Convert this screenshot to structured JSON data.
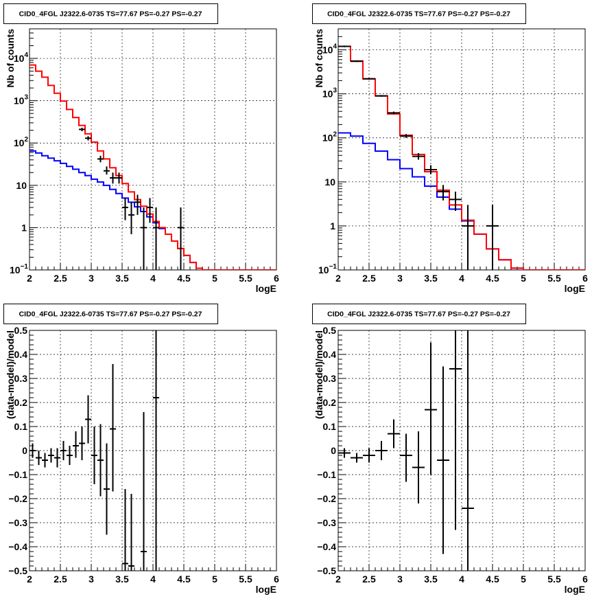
{
  "colors": {
    "model_total": "#ff0000",
    "model_background": "#0000ff",
    "data": "#000000"
  },
  "chart_data": [
    {
      "type": "line",
      "title": "CID0_4FGL J2322.6-0735 TS=77.67 PS=-0.27 PS=-0.27",
      "xlabel": "logE",
      "ylabel": "Nb of counts",
      "log_y": true,
      "grid": true,
      "xlim": [
        2,
        6
      ],
      "ylim": [
        0.1,
        50000
      ],
      "x_ticks": [
        "2",
        "2.5",
        "3",
        "3.5",
        "4",
        "4.5",
        "5",
        "5.5",
        "6"
      ],
      "y_ticks": [
        {
          "label": "10",
          "sup": "−1",
          "value": 0.1
        },
        {
          "label": "1",
          "sup": "",
          "value": 1
        },
        {
          "label": "10",
          "sup": "",
          "value": 10
        },
        {
          "label": "10",
          "sup": "2",
          "value": 100
        },
        {
          "label": "10",
          "sup": "3",
          "value": 1000
        },
        {
          "label": "10",
          "sup": "4",
          "value": 10000
        }
      ],
      "bin_edges": [
        2.0,
        2.1,
        2.2,
        2.3,
        2.4,
        2.5,
        2.6,
        2.7,
        2.8,
        2.9,
        3.0,
        3.1,
        3.2,
        3.3,
        3.4,
        3.5,
        3.6,
        3.7,
        3.8,
        3.9,
        4.0,
        4.1,
        4.2,
        4.3,
        4.4,
        4.5,
        4.6,
        4.7,
        4.8,
        4.9,
        5.0,
        5.1,
        5.2,
        5.3,
        5.4,
        5.5,
        5.6,
        5.7,
        5.8,
        5.9,
        6.0
      ],
      "series": [
        {
          "role": "model_total",
          "values": [
            7000,
            5000,
            3600,
            2300,
            1500,
            980,
            620,
            400,
            260,
            165,
            105,
            65,
            42,
            26,
            17,
            11,
            7,
            4.6,
            3.2,
            2.1,
            1.4,
            1.0,
            0.7,
            0.48,
            0.32,
            0.22,
            0.15,
            0.11,
            0.1,
            0.1,
            0.1,
            0.1,
            0.1,
            0.1,
            0.1,
            0.1,
            0.1,
            0.1,
            0.1,
            0.1
          ]
        },
        {
          "role": "model_background",
          "values": [
            65,
            58,
            50,
            44,
            38,
            33,
            28,
            24,
            20,
            17,
            14,
            12,
            10,
            8,
            6.4,
            5,
            4,
            3.1,
            2.4,
            1.8,
            1.3,
            0.95,
            0.7,
            0.48,
            0.32,
            0.22,
            0.15,
            0.11,
            0.1,
            0.1,
            0.1,
            0.1,
            0.1,
            0.1,
            0.1,
            0.1,
            0.1,
            0.1,
            0.1,
            0.1
          ]
        },
        {
          "role": "data",
          "points": [
            {
              "x": 2.85,
              "y": 210,
              "lo": 190,
              "hi": 230
            },
            {
              "x": 2.95,
              "y": 130,
              "lo": 115,
              "hi": 145
            },
            {
              "x": 3.15,
              "y": 42,
              "lo": 35,
              "hi": 50
            },
            {
              "x": 3.25,
              "y": 22,
              "lo": 18,
              "hi": 28
            },
            {
              "x": 3.35,
              "y": 15,
              "lo": 11,
              "hi": 20
            },
            {
              "x": 3.45,
              "y": 15,
              "lo": 11,
              "hi": 20
            },
            {
              "x": 3.55,
              "y": 3,
              "lo": 1.5,
              "hi": 5
            },
            {
              "x": 3.65,
              "y": 2,
              "lo": 0.7,
              "hi": 4
            },
            {
              "x": 3.75,
              "y": 4,
              "lo": 2,
              "hi": 6
            },
            {
              "x": 3.85,
              "y": 1,
              "lo": 0.1,
              "hi": 3
            },
            {
              "x": 3.95,
              "y": 3,
              "lo": 1.3,
              "hi": 5
            },
            {
              "x": 4.05,
              "y": 1,
              "lo": 0.1,
              "hi": 3
            },
            {
              "x": 4.45,
              "y": 1,
              "lo": 0.1,
              "hi": 3
            }
          ]
        }
      ]
    },
    {
      "type": "line",
      "title": "CID0_4FGL J2322.6-0735 TS=77.67 PS=-0.27 PS=-0.27",
      "xlabel": "logE",
      "ylabel": "Nb of counts",
      "log_y": true,
      "grid": true,
      "xlim": [
        2,
        6
      ],
      "ylim": [
        0.1,
        30000
      ],
      "x_ticks": [
        "2",
        "2.5",
        "3",
        "3.5",
        "4",
        "4.5",
        "5",
        "5.5",
        "6"
      ],
      "y_ticks": [
        {
          "label": "10",
          "sup": "−1",
          "value": 0.1
        },
        {
          "label": "1",
          "sup": "",
          "value": 1
        },
        {
          "label": "10",
          "sup": "",
          "value": 10
        },
        {
          "label": "10",
          "sup": "2",
          "value": 100
        },
        {
          "label": "10",
          "sup": "3",
          "value": 1000
        },
        {
          "label": "10",
          "sup": "4",
          "value": 10000
        }
      ],
      "bin_edges": [
        2.0,
        2.2,
        2.4,
        2.6,
        2.8,
        3.0,
        3.2,
        3.4,
        3.6,
        3.8,
        4.0,
        4.2,
        4.4,
        4.6,
        4.8,
        5.0,
        5.2,
        5.4,
        5.6,
        5.8,
        6.0
      ],
      "series": [
        {
          "role": "model_total",
          "values": [
            12000,
            5600,
            2200,
            900,
            350,
            115,
            42,
            17,
            6.5,
            3,
            1.35,
            0.65,
            0.3,
            0.17,
            0.11,
            0.1,
            0.1,
            0.1,
            0.1,
            0.1
          ]
        },
        {
          "role": "model_background",
          "values": [
            130,
            110,
            75,
            50,
            32,
            20,
            13,
            8,
            4.5,
            2.4,
            1.3,
            0.65,
            0.3,
            0.17,
            0.11,
            0.1,
            0.1,
            0.1,
            0.1,
            0.1
          ]
        },
        {
          "role": "data",
          "points": [
            {
              "x": 2.1,
              "y": 12000,
              "lo": 11500,
              "hi": 12500
            },
            {
              "x": 2.3,
              "y": 5500,
              "lo": 5300,
              "hi": 5700
            },
            {
              "x": 2.5,
              "y": 2200,
              "lo": 2100,
              "hi": 2300
            },
            {
              "x": 2.7,
              "y": 900,
              "lo": 860,
              "hi": 940
            },
            {
              "x": 2.9,
              "y": 370,
              "lo": 345,
              "hi": 395
            },
            {
              "x": 3.1,
              "y": 110,
              "lo": 100,
              "hi": 122
            },
            {
              "x": 3.3,
              "y": 38,
              "lo": 32,
              "hi": 45
            },
            {
              "x": 3.5,
              "y": 19,
              "lo": 15,
              "hi": 24
            },
            {
              "x": 3.7,
              "y": 6,
              "lo": 3.8,
              "hi": 8.5
            },
            {
              "x": 3.9,
              "y": 4,
              "lo": 2.2,
              "hi": 6
            },
            {
              "x": 4.1,
              "y": 1,
              "lo": 0.1,
              "hi": 3
            },
            {
              "x": 4.5,
              "y": 1,
              "lo": 0.1,
              "hi": 3
            }
          ]
        }
      ]
    },
    {
      "type": "scatter",
      "title": "CID0_4FGL J2322.6-0735 TS=77.67 PS=-0.27 PS=-0.27",
      "xlabel": "logE",
      "ylabel": "(data-model)/model",
      "grid": true,
      "xlim": [
        2,
        6
      ],
      "ylim": [
        -0.5,
        0.5
      ],
      "x_ticks": [
        "2",
        "2.5",
        "3",
        "3.5",
        "4",
        "4.5",
        "5",
        "5.5",
        "6"
      ],
      "y_ticks": [
        "−0.5",
        "−0.4",
        "−0.3",
        "−0.2",
        "−0.1",
        "0",
        "0.1",
        "0.2",
        "0.3",
        "0.4",
        "0.5"
      ],
      "points": [
        {
          "x": 2.05,
          "y": 0.0,
          "lo": -0.03,
          "hi": 0.03
        },
        {
          "x": 2.15,
          "y": -0.03,
          "lo": -0.06,
          "hi": 0.0
        },
        {
          "x": 2.25,
          "y": -0.04,
          "lo": -0.07,
          "hi": -0.01
        },
        {
          "x": 2.35,
          "y": -0.02,
          "lo": -0.05,
          "hi": 0.01
        },
        {
          "x": 2.45,
          "y": -0.03,
          "lo": -0.07,
          "hi": 0.01
        },
        {
          "x": 2.55,
          "y": 0.0,
          "lo": -0.04,
          "hi": 0.04
        },
        {
          "x": 2.65,
          "y": -0.02,
          "lo": -0.06,
          "hi": 0.02
        },
        {
          "x": 2.75,
          "y": 0.02,
          "lo": -0.03,
          "hi": 0.08
        },
        {
          "x": 2.85,
          "y": 0.03,
          "lo": -0.04,
          "hi": 0.1
        },
        {
          "x": 2.95,
          "y": 0.13,
          "lo": 0.03,
          "hi": 0.23
        },
        {
          "x": 3.05,
          "y": -0.02,
          "lo": -0.14,
          "hi": 0.1
        },
        {
          "x": 3.15,
          "y": -0.04,
          "lo": -0.19,
          "hi": 0.11
        },
        {
          "x": 3.25,
          "y": -0.16,
          "lo": -0.35,
          "hi": 0.03
        },
        {
          "x": 3.35,
          "y": 0.09,
          "lo": -0.17,
          "hi": 0.36
        },
        {
          "x": 3.55,
          "y": -0.47,
          "lo": -0.6,
          "hi": -0.16
        },
        {
          "x": 3.65,
          "y": -0.48,
          "lo": -0.6,
          "hi": -0.18
        },
        {
          "x": 3.85,
          "y": -0.42,
          "lo": -0.6,
          "hi": 0.16
        },
        {
          "x": 4.05,
          "y": 0.22,
          "lo": -0.6,
          "hi": 0.6
        }
      ]
    },
    {
      "type": "scatter",
      "title": "CID0_4FGL J2322.6-0735 TS=77.67 PS=-0.27 PS=-0.27",
      "xlabel": "logE",
      "ylabel": "(data-model)/model",
      "grid": true,
      "xlim": [
        2,
        6
      ],
      "ylim": [
        -0.5,
        0.5
      ],
      "x_ticks": [
        "2",
        "2.5",
        "3",
        "3.5",
        "4",
        "4.5",
        "5",
        "5.5",
        "6"
      ],
      "y_ticks": [
        "−0.5",
        "−0.4",
        "−0.3",
        "−0.2",
        "−0.1",
        "0",
        "0.1",
        "0.2",
        "0.3",
        "0.4",
        "0.5"
      ],
      "points": [
        {
          "x": 2.1,
          "y": -0.01,
          "lo": -0.03,
          "hi": 0.01
        },
        {
          "x": 2.3,
          "y": -0.03,
          "lo": -0.05,
          "hi": -0.01
        },
        {
          "x": 2.5,
          "y": -0.02,
          "lo": -0.05,
          "hi": 0.01
        },
        {
          "x": 2.7,
          "y": 0.0,
          "lo": -0.04,
          "hi": 0.04
        },
        {
          "x": 2.9,
          "y": 0.07,
          "lo": 0.01,
          "hi": 0.13
        },
        {
          "x": 3.1,
          "y": -0.02,
          "lo": -0.13,
          "hi": 0.07
        },
        {
          "x": 3.3,
          "y": -0.07,
          "lo": -0.22,
          "hi": 0.08
        },
        {
          "x": 3.5,
          "y": 0.17,
          "lo": -0.1,
          "hi": 0.45
        },
        {
          "x": 3.7,
          "y": -0.04,
          "lo": -0.43,
          "hi": 0.35
        },
        {
          "x": 3.9,
          "y": 0.34,
          "lo": -0.33,
          "hi": 0.6
        },
        {
          "x": 4.1,
          "y": -0.24,
          "lo": -0.6,
          "hi": 0.6
        }
      ]
    }
  ]
}
